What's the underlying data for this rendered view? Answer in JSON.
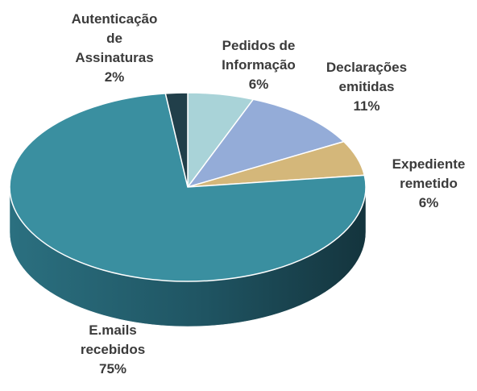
{
  "chart_data": {
    "type": "pie",
    "categories": [
      "Pedidos de Informação",
      "Declarações emitidas",
      "Expediente remetido",
      "E.mails recebidos",
      "Autenticação de Assinaturas"
    ],
    "values": [
      6,
      11,
      6,
      75,
      2
    ],
    "value_labels": [
      "6%",
      "11%",
      "6%",
      "75%",
      "2%"
    ],
    "colors": [
      "#a9d3d8",
      "#94acd8",
      "#d4b77a",
      "#3a8fa0",
      "#213f4a"
    ]
  }
}
